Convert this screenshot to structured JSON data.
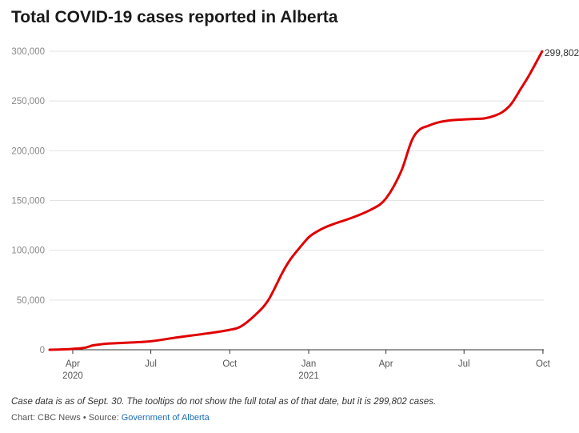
{
  "chart_data": {
    "type": "line",
    "title": "Total COVID-19 cases reported in Alberta",
    "xlabel": "",
    "ylabel": "",
    "ylim": [
      0,
      300000
    ],
    "yticks": [
      0,
      50000,
      100000,
      150000,
      200000,
      250000,
      300000
    ],
    "ytick_labels": [
      "0",
      "50,000",
      "100,000",
      "150,000",
      "200,000",
      "250,000",
      "300,000"
    ],
    "xlim": [
      "2020-03-05",
      "2021-10-02"
    ],
    "xticks": [
      {
        "date": "2020-04-01",
        "label": "Apr",
        "sublabel": "2020"
      },
      {
        "date": "2020-07-01",
        "label": "Jul",
        "sublabel": ""
      },
      {
        "date": "2020-10-01",
        "label": "Oct",
        "sublabel": ""
      },
      {
        "date": "2021-01-01",
        "label": "Jan",
        "sublabel": "2021"
      },
      {
        "date": "2021-04-01",
        "label": "Apr",
        "sublabel": ""
      },
      {
        "date": "2021-07-01",
        "label": "Jul",
        "sublabel": ""
      },
      {
        "date": "2021-10-01",
        "label": "Oct",
        "sublabel": ""
      }
    ],
    "grid": true,
    "line_color": "#e00000",
    "end_label": "299,802",
    "series": [
      {
        "name": "",
        "x": [
          "2020-03-05",
          "2020-03-25",
          "2020-04-01",
          "2020-04-15",
          "2020-04-25",
          "2020-05-10",
          "2020-06-01",
          "2020-07-01",
          "2020-08-01",
          "2020-09-01",
          "2020-10-01",
          "2020-10-15",
          "2020-11-01",
          "2020-11-15",
          "2020-12-01",
          "2020-12-10",
          "2020-12-20",
          "2021-01-01",
          "2021-01-10",
          "2021-01-20",
          "2021-02-01",
          "2021-02-15",
          "2021-03-01",
          "2021-03-15",
          "2021-03-25",
          "2021-04-01",
          "2021-04-10",
          "2021-04-20",
          "2021-05-01",
          "2021-05-10",
          "2021-05-20",
          "2021-06-01",
          "2021-06-15",
          "2021-07-01",
          "2021-07-15",
          "2021-07-25",
          "2021-08-05",
          "2021-08-15",
          "2021-08-25",
          "2021-09-05",
          "2021-09-15",
          "2021-09-30"
        ],
        "y": [
          0,
          500,
          900,
          2000,
          4500,
          6000,
          7000,
          8500,
          12500,
          16000,
          20000,
          24000,
          36000,
          50000,
          77000,
          90000,
          101000,
          113000,
          118500,
          123000,
          127000,
          131000,
          135500,
          141000,
          146000,
          152000,
          164000,
          182000,
          210000,
          221000,
          225000,
          228500,
          230500,
          231500,
          232000,
          232500,
          235000,
          239000,
          247000,
          262000,
          276000,
          299802
        ]
      }
    ]
  },
  "note": "Case data is as of Sept. 30. The tooltips do not show the full total as of that date, but it is 299,802 cases.",
  "credit_prefix": "Chart: CBC News • Source: ",
  "credit_link": "Government of Alberta",
  "cut_text": "When Hinshaw say... was planned for the ... ers ... Dr. Deena Hinshaw ... Hinshaw's chief medical"
}
